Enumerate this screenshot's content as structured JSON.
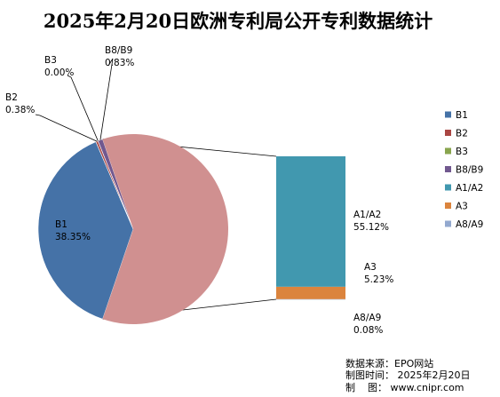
{
  "chart_data": {
    "type": "pie",
    "subtype": "bar-of-pie",
    "title": "2025年2月20日欧洲专利局公开专利数据统计",
    "series": [
      {
        "key": "b1",
        "name": "B1",
        "value": 38.35,
        "label": "38.35%",
        "color": "#4572A7"
      },
      {
        "key": "b2",
        "name": "B2",
        "value": 0.38,
        "label": "0.38%",
        "color": "#AA4643"
      },
      {
        "key": "b3",
        "name": "B3",
        "value": 0.0,
        "label": "0.00%",
        "color": "#89A54E"
      },
      {
        "key": "b8b9",
        "name": "B8/B9",
        "value": 0.83,
        "label": "0.83%",
        "color": "#71588F"
      },
      {
        "key": "a1a2",
        "name": "A1/A2",
        "value": 55.12,
        "label": "55.12%",
        "color": "#4198AF"
      },
      {
        "key": "a3",
        "name": "A3",
        "value": 5.23,
        "label": "5.23%",
        "color": "#DB843D"
      },
      {
        "key": "a8a9",
        "name": "A8/A9",
        "value": 0.08,
        "label": "0.08%",
        "color": "#93A9CF"
      }
    ],
    "other_slice": {
      "color": "#D09090"
    },
    "pie_members": [
      "b1",
      "b2",
      "b3",
      "b8b9"
    ],
    "bar_members": [
      "a1a2",
      "a3",
      "a8a9"
    ],
    "legend_position": "right"
  },
  "source": {
    "line1": "数据来源：EPO网站",
    "line2": "制图时间： 2025年2月20日",
    "line3": "制    图： www.cnipr.com"
  }
}
